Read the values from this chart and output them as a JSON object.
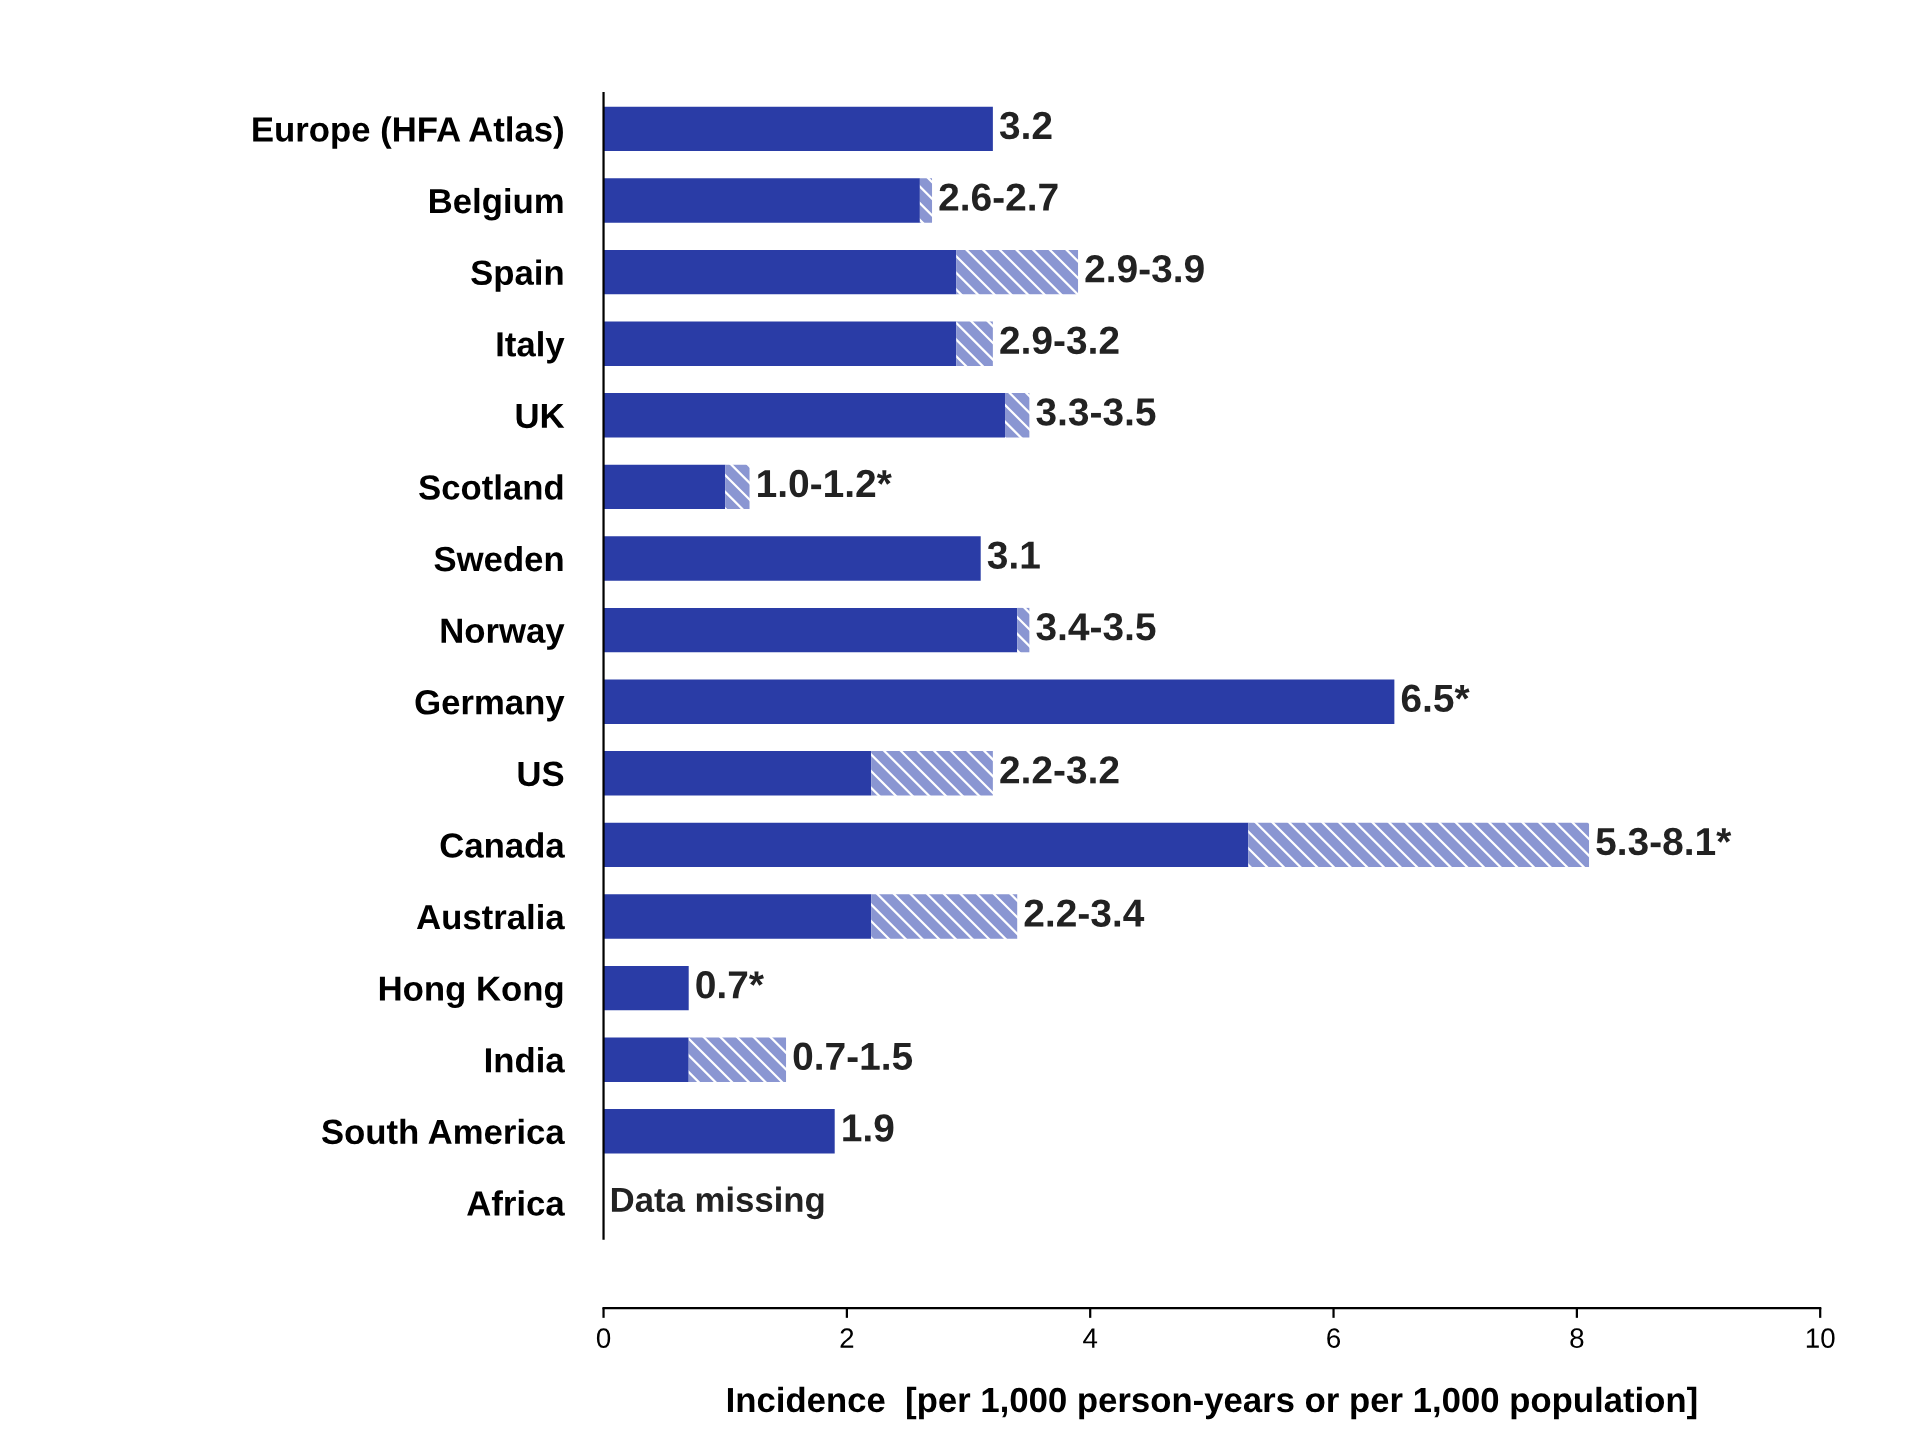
{
  "chart_data": {
    "type": "bar",
    "orientation": "horizontal",
    "stacked": true,
    "categories": [
      "Europe (HFA Atlas)",
      "Belgium",
      "Spain",
      "Italy",
      "UK",
      "Scotland",
      "Sweden",
      "Norway",
      "Germany",
      "US",
      "Canada",
      "Australia",
      "Hong Kong",
      "India",
      "South America",
      "Africa"
    ],
    "series": [
      {
        "color": "#2a3ca6",
        "values": [
          3.2,
          2.6,
          2.9,
          2.9,
          3.3,
          1.0,
          3.1,
          3.4,
          6.5,
          2.2,
          5.3,
          2.2,
          0.7,
          0.7,
          1.9,
          null
        ]
      },
      {
        "color": "#8a96d2",
        "values": [
          null,
          0.1,
          1.0,
          0.3,
          0.2,
          0.2,
          null,
          0.1,
          null,
          1.0,
          2.8,
          1.2,
          null,
          0.8,
          null,
          null
        ]
      }
    ],
    "totals": [
      "3.2",
      "2.6-2.7",
      "2.9-3.9",
      "2.9-3.2",
      "3.3-3.5",
      "1.0-1.2*",
      "3.1",
      "3.4-3.5",
      "6.5*",
      "2.2-3.2",
      "5.3-8.1*",
      "2.2-3.4",
      "0.7*",
      "0.7-1.5",
      "1.9",
      null
    ],
    "annotations": [
      "Data missing"
    ],
    "xlim": [
      0,
      10
    ],
    "xticks": [
      0,
      2,
      4,
      6,
      8,
      10
    ],
    "xlabel": "Incidence  [per 1,000 person-years or per 1,000 population]",
    "grid": false,
    "legend": false
  }
}
